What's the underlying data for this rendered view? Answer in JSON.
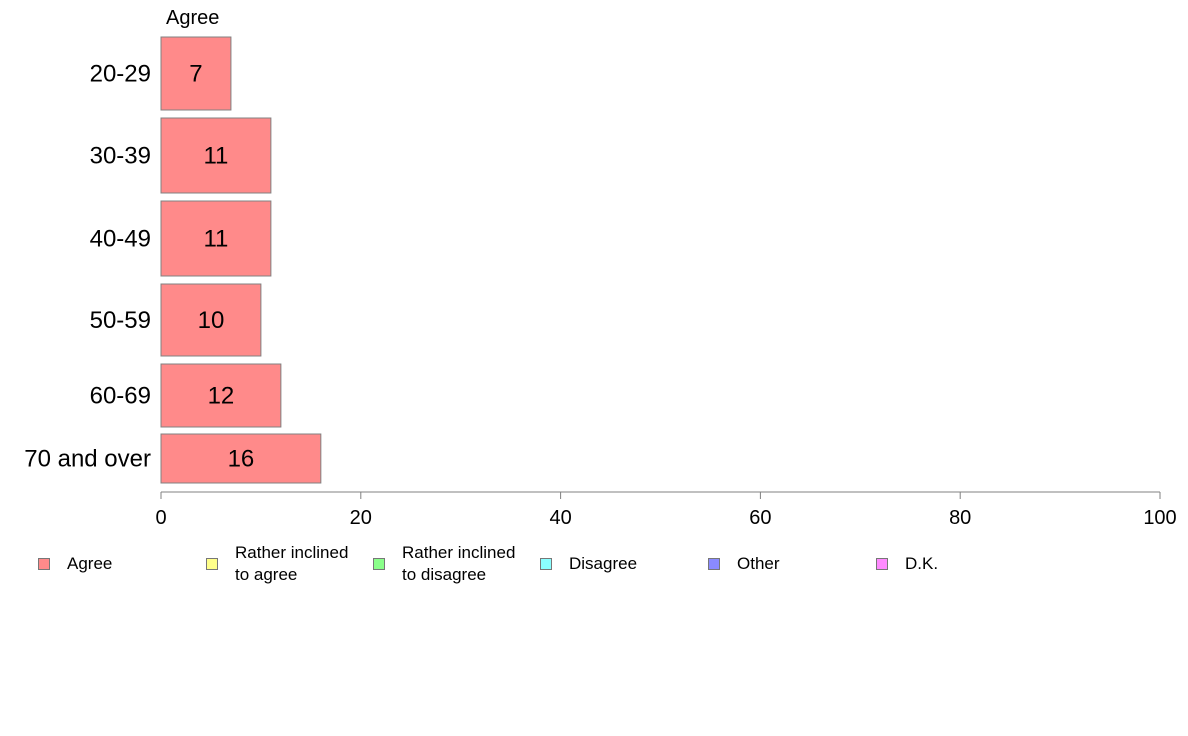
{
  "chart_data": {
    "type": "bar",
    "orientation": "horizontal",
    "title": "Agree",
    "categories": [
      "20-29",
      "30-39",
      "40-49",
      "50-59",
      "60-69",
      "70 and over"
    ],
    "series": [
      {
        "name": "Agree",
        "values": [
          7,
          11,
          11,
          10,
          12,
          16
        ],
        "color": "#ff8a8a"
      }
    ],
    "xlim": [
      0,
      100
    ],
    "xticks": [
      "0",
      "20",
      "40",
      "60",
      "80",
      "100"
    ],
    "grid": false,
    "legend_position": "bottom",
    "legend": [
      {
        "label": "Agree",
        "color": "#ff8a8a"
      },
      {
        "label": "Rather inclined to agree",
        "color": "#ffff8a"
      },
      {
        "label": "Rather inclined to disagree",
        "color": "#8aff8a"
      },
      {
        "label": "Disagree",
        "color": "#8affff"
      },
      {
        "label": "Other",
        "color": "#8a8aff"
      },
      {
        "label": "D.K.",
        "color": "#ff8aff"
      }
    ]
  }
}
